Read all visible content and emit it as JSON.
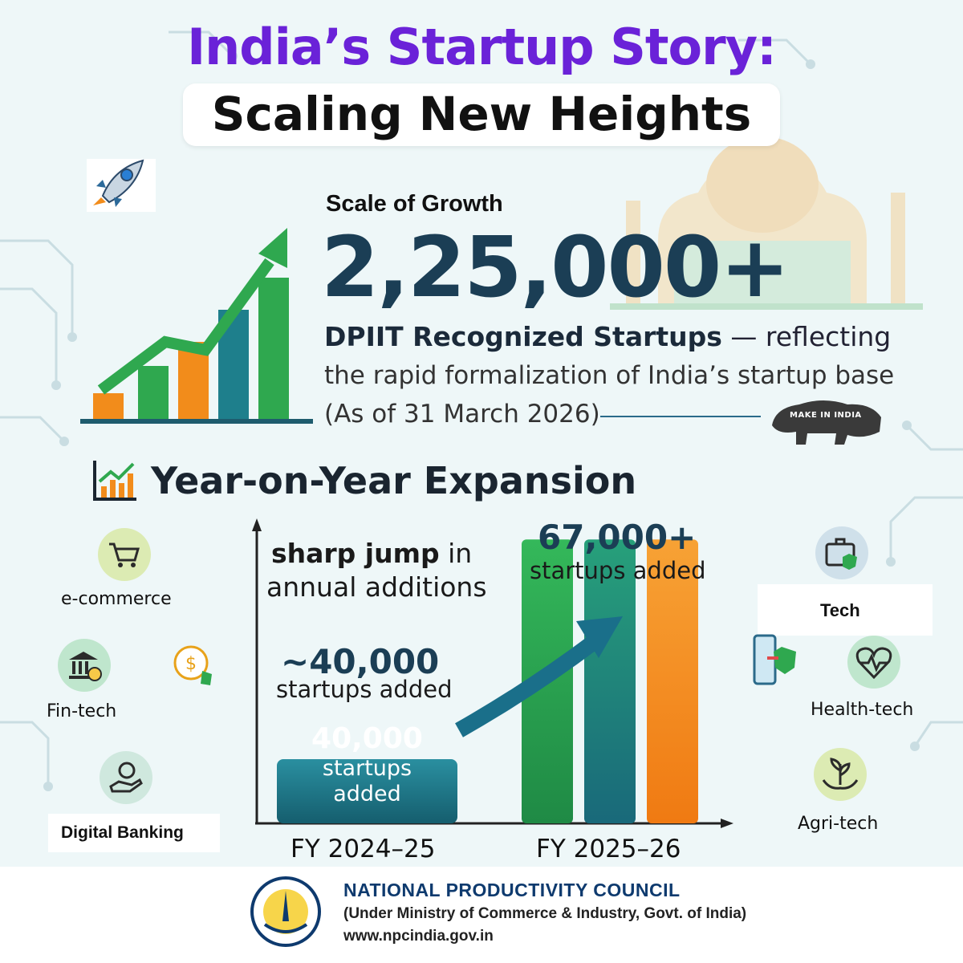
{
  "header": {
    "title_line1": "India’s Startup Story:",
    "title_line2": "Scaling New Heights"
  },
  "growth": {
    "label": "Scale of Growth",
    "number": "2,25,000+",
    "dpiit_bold": "DPIIT Recognized Startups",
    "dpiit_rest": " — reflecting",
    "description": "the rapid formalization of India’s startup base",
    "as_of": "(As of 31 March 2026)",
    "make_in_india": "MAKE IN INDIA"
  },
  "expansion": {
    "title": "Year-on-Year Expansion",
    "note_bold": "sharp jump",
    "note_rest": " in",
    "note_line2": "annual additions",
    "fy1_value_label": "~40,000",
    "fy1_sub_label": "startups added",
    "fy2_value_label": "67,000+",
    "fy2_sub_label": "startups added",
    "bar_text_1": "40,000",
    "bar_text_2": "startups",
    "bar_text_3": "added"
  },
  "chart_data": {
    "type": "bar",
    "categories": [
      "FY 2024–25",
      "FY 2025–26"
    ],
    "values": [
      40000,
      67000
    ],
    "title": "",
    "xlabel": "",
    "ylabel": "",
    "legend": "none",
    "grid": false
  },
  "sectors_left": [
    {
      "label": "e-commerce",
      "icon": "cart-icon"
    },
    {
      "label": "Fin-tech",
      "icon": "bank-icon"
    },
    {
      "label": "Digital Banking",
      "icon": "coin-hand-icon"
    }
  ],
  "sectors_right": [
    {
      "label": "Tech",
      "icon": "briefcase-shield-icon"
    },
    {
      "label": "Health-tech",
      "icon": "heart-pulse-icon"
    },
    {
      "label": "Agri-tech",
      "icon": "plant-hands-icon"
    }
  ],
  "footer": {
    "org_name": "NATIONAL PRODUCTIVITY COUNCIL",
    "org_sub": "(Under Ministry of Commerce & Industry, Govt. of India)",
    "url": "www.npcindia.gov.in"
  },
  "colors": {
    "title_purple": "#6a22d8",
    "navy": "#1b3e55",
    "teal_bar": "#1e7f8c",
    "green_bar": "#2fa84f",
    "orange_bar": "#f28c1b",
    "background": "#eef7f8"
  }
}
